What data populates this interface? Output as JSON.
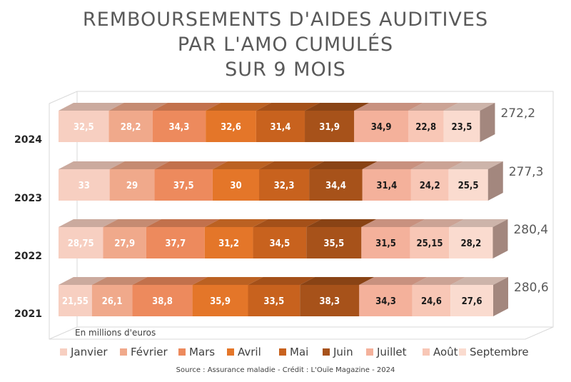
{
  "chart_data": {
    "type": "bar",
    "orientation": "horizontal",
    "stacked": true,
    "three_d": true,
    "title": [
      "REMBOURSEMENTS D'AIDES AUDITIVES",
      "PAR L'AMO CUMULÉS",
      "SUR 9 MOIS"
    ],
    "unit": "En millions d'euros",
    "source": "Source : Assurance maladie - Crédit : L'Ouïe Magazine - 2024",
    "categories": [
      "2024",
      "2023",
      "2022",
      "2021"
    ],
    "value_labels": [
      [
        "32,5",
        "28,2",
        "34,3",
        "32,6",
        "31,4",
        "31,9",
        "34,9",
        "22,8",
        "23,5"
      ],
      [
        "33",
        "29",
        "37,5",
        "30",
        "32,3",
        "34,4",
        "31,4",
        "24,2",
        "25,5"
      ],
      [
        "28,75",
        "27,9",
        "37,7",
        "31,2",
        "34,5",
        "35,5",
        "31,5",
        "25,15",
        "28,2"
      ],
      [
        "21,55",
        "26,1",
        "38,8",
        "35,9",
        "33,5",
        "38,3",
        "34,3",
        "24,6",
        "27,6"
      ]
    ],
    "totals": [
      {
        "value": 272.2,
        "label": "272,2"
      },
      {
        "value": 277.3,
        "label": "277,3"
      },
      {
        "value": 280.4,
        "label": "280,4"
      },
      {
        "value": 280.6,
        "label": "280,6"
      }
    ],
    "series": [
      {
        "name": "Janvier",
        "color": "#f7cfc1",
        "text_color": "#ffffff",
        "values": [
          32.5,
          33,
          28.75,
          21.55
        ]
      },
      {
        "name": "Février",
        "color": "#f0a98b",
        "text_color": "#ffffff",
        "values": [
          28.2,
          29,
          27.9,
          26.1
        ]
      },
      {
        "name": "Mars",
        "color": "#ed8a5d",
        "text_color": "#ffffff",
        "values": [
          34.3,
          37.5,
          37.7,
          38.8
        ]
      },
      {
        "name": "Avril",
        "color": "#e47629",
        "text_color": "#ffffff",
        "values": [
          32.6,
          30,
          31.2,
          35.9
        ]
      },
      {
        "name": "Mai",
        "color": "#c8621e",
        "text_color": "#ffffff",
        "values": [
          31.4,
          32.3,
          34.5,
          33.5
        ]
      },
      {
        "name": "Juin",
        "color": "#a7521a",
        "text_color": "#ffffff",
        "values": [
          31.9,
          34.4,
          35.5,
          38.3
        ]
      },
      {
        "name": "Juillet",
        "color": "#f4b19b",
        "text_color": "#1a1a1a",
        "values": [
          34.9,
          31.4,
          31.5,
          34.3
        ]
      },
      {
        "name": "Août",
        "color": "#f8c7b6",
        "text_color": "#1a1a1a",
        "values": [
          22.8,
          24.2,
          25.15,
          24.6
        ]
      },
      {
        "name": "Septembre",
        "color": "#fadbcf",
        "text_color": "#1a1a1a",
        "values": [
          23.5,
          25.5,
          28.2,
          27.6
        ]
      }
    ],
    "legend_position": "bottom",
    "grid": false
  }
}
